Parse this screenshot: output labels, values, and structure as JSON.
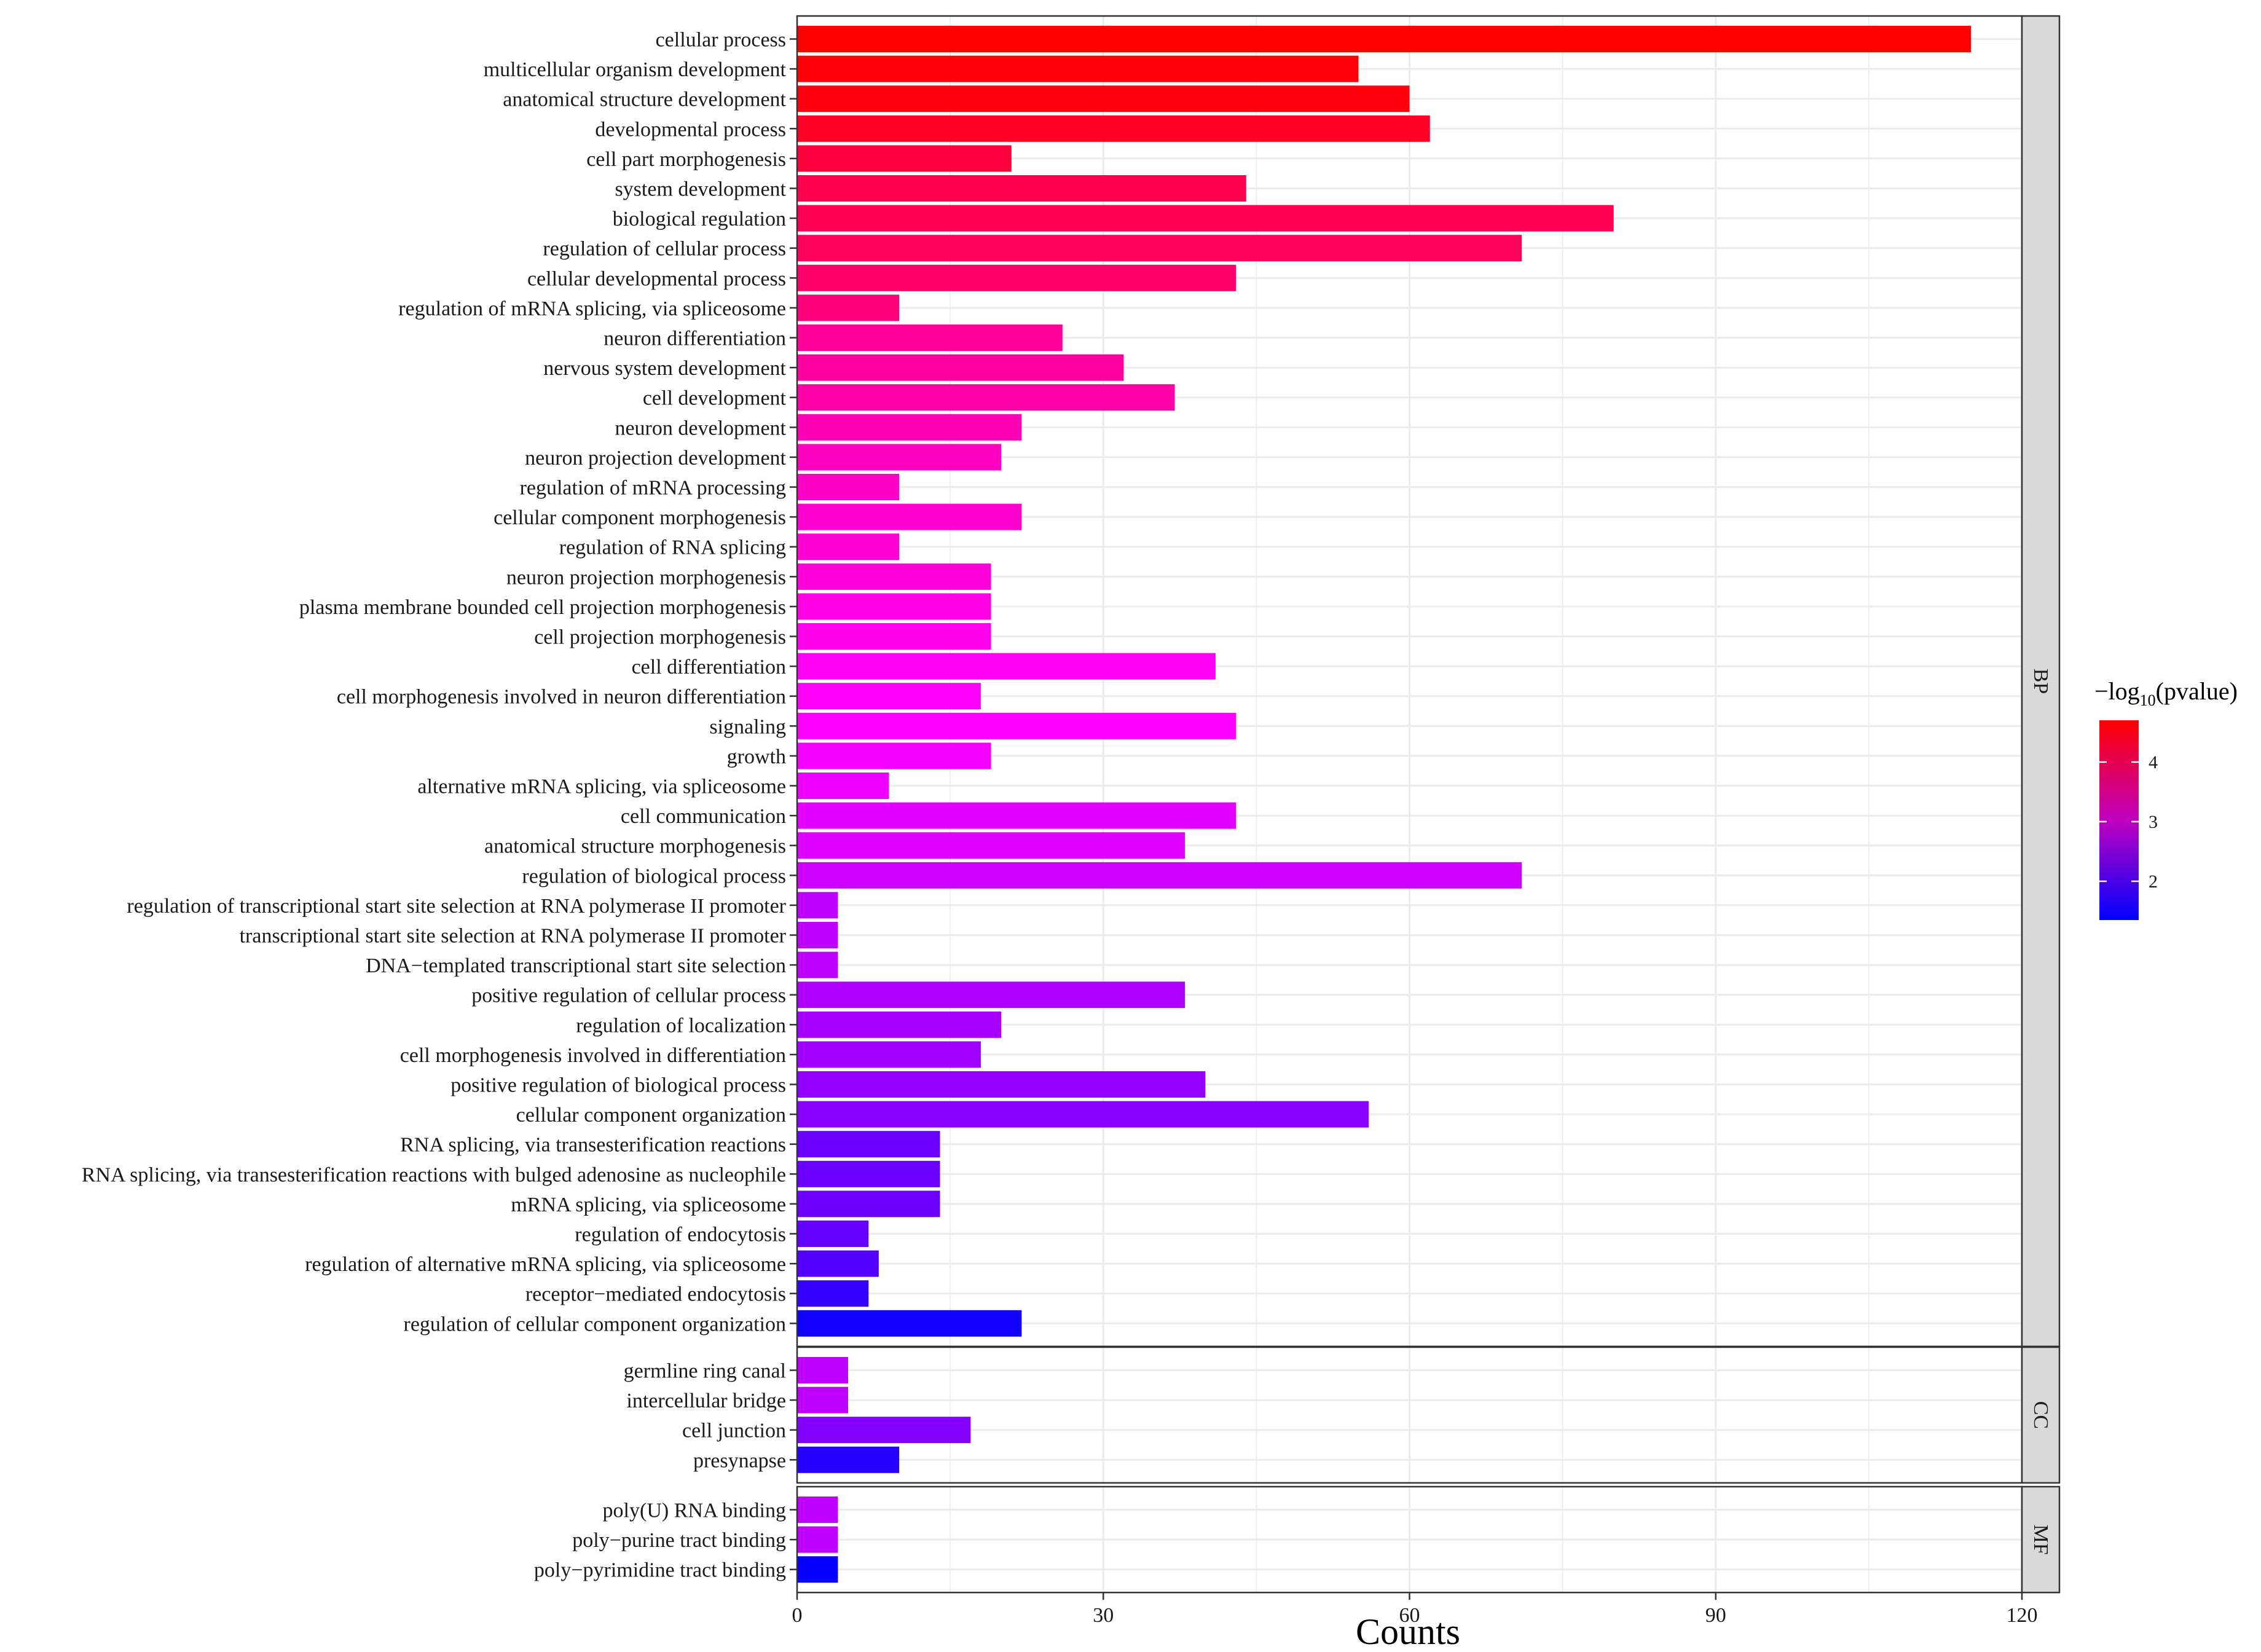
{
  "chart_data": {
    "type": "bar",
    "orientation": "horizontal",
    "xlabel": "Counts",
    "xlim": [
      0,
      120
    ],
    "xticks": [
      0,
      30,
      60,
      90,
      120
    ],
    "grid": true,
    "color_scale": {
      "title_prefix": "−log",
      "title_sub": "10",
      "title_suffix": "(pvalue)",
      "low": 1.35,
      "high": 4.7,
      "low_color": "#0000ff",
      "high_color": "#ff0000",
      "ticks": [
        2,
        3,
        4
      ],
      "legend_position": "right"
    },
    "panels": [
      {
        "name": "BP",
        "terms": [
          {
            "label": "cellular process",
            "count": 115,
            "neglog10p": 4.7
          },
          {
            "label": "multicellular organism development",
            "count": 55,
            "neglog10p": 4.65
          },
          {
            "label": "anatomical structure development",
            "count": 60,
            "neglog10p": 4.6
          },
          {
            "label": "developmental process",
            "count": 62,
            "neglog10p": 4.45
          },
          {
            "label": "cell part morphogenesis",
            "count": 21,
            "neglog10p": 4.3
          },
          {
            "label": "system development",
            "count": 44,
            "neglog10p": 4.2
          },
          {
            "label": "biological regulation",
            "count": 80,
            "neglog10p": 4.15
          },
          {
            "label": "regulation of cellular process",
            "count": 71,
            "neglog10p": 4.1
          },
          {
            "label": "cellular developmental process",
            "count": 43,
            "neglog10p": 4.0
          },
          {
            "label": "regulation of mRNA splicing, via spliceosome",
            "count": 10,
            "neglog10p": 3.9
          },
          {
            "label": "neuron differentiation",
            "count": 26,
            "neglog10p": 3.7
          },
          {
            "label": "nervous system development",
            "count": 32,
            "neglog10p": 3.65
          },
          {
            "label": "cell development",
            "count": 37,
            "neglog10p": 3.6
          },
          {
            "label": "neuron development",
            "count": 22,
            "neglog10p": 3.5
          },
          {
            "label": "neuron projection development",
            "count": 20,
            "neglog10p": 3.45
          },
          {
            "label": "regulation of mRNA processing",
            "count": 10,
            "neglog10p": 3.4
          },
          {
            "label": "cellular component morphogenesis",
            "count": 22,
            "neglog10p": 3.35
          },
          {
            "label": "regulation of RNA splicing",
            "count": 10,
            "neglog10p": 3.3
          },
          {
            "label": "neuron projection morphogenesis",
            "count": 19,
            "neglog10p": 3.25
          },
          {
            "label": "plasma membrane bounded cell projection morphogenesis",
            "count": 19,
            "neglog10p": 3.2
          },
          {
            "label": "cell projection morphogenesis",
            "count": 19,
            "neglog10p": 3.15
          },
          {
            "label": "cell differentiation",
            "count": 41,
            "neglog10p": 3.1
          },
          {
            "label": "cell morphogenesis involved in neuron differentiation",
            "count": 18,
            "neglog10p": 3.05
          },
          {
            "label": "signaling",
            "count": 43,
            "neglog10p": 3.0
          },
          {
            "label": "growth",
            "count": 19,
            "neglog10p": 2.95
          },
          {
            "label": "alternative mRNA splicing, via spliceosome",
            "count": 9,
            "neglog10p": 2.9
          },
          {
            "label": "cell communication",
            "count": 43,
            "neglog10p": 2.85
          },
          {
            "label": "anatomical structure morphogenesis",
            "count": 38,
            "neglog10p": 2.8
          },
          {
            "label": "regulation of biological process",
            "count": 71,
            "neglog10p": 2.7
          },
          {
            "label": "regulation of transcriptional start site selection at RNA polymerase II promoter",
            "count": 4,
            "neglog10p": 2.6
          },
          {
            "label": "transcriptional start site selection at RNA polymerase II promoter",
            "count": 4,
            "neglog10p": 2.6
          },
          {
            "label": "DNA−templated transcriptional start site selection",
            "count": 4,
            "neglog10p": 2.6
          },
          {
            "label": "positive regulation of cellular process",
            "count": 38,
            "neglog10p": 2.5
          },
          {
            "label": "regulation of localization",
            "count": 20,
            "neglog10p": 2.45
          },
          {
            "label": "cell morphogenesis involved in differentiation",
            "count": 18,
            "neglog10p": 2.4
          },
          {
            "label": "positive regulation of biological process",
            "count": 40,
            "neglog10p": 2.3
          },
          {
            "label": "cellular component organization",
            "count": 56,
            "neglog10p": 2.25
          },
          {
            "label": "RNA splicing, via transesterification reactions",
            "count": 14,
            "neglog10p": 2.05
          },
          {
            "label": "RNA splicing, via transesterification reactions with bulged adenosine as nucleophile",
            "count": 14,
            "neglog10p": 2.05
          },
          {
            "label": "mRNA splicing, via spliceosome",
            "count": 14,
            "neglog10p": 2.05
          },
          {
            "label": "regulation of endocytosis",
            "count": 7,
            "neglog10p": 2.0
          },
          {
            "label": "regulation of alternative mRNA splicing, via spliceosome",
            "count": 8,
            "neglog10p": 1.9
          },
          {
            "label": "receptor−mediated endocytosis",
            "count": 7,
            "neglog10p": 1.7
          },
          {
            "label": "regulation of cellular component organization",
            "count": 22,
            "neglog10p": 1.45
          }
        ]
      },
      {
        "name": "CC",
        "terms": [
          {
            "label": "germline ring canal",
            "count": 5,
            "neglog10p": 2.6
          },
          {
            "label": "intercellular bridge",
            "count": 5,
            "neglog10p": 2.6
          },
          {
            "label": "cell junction",
            "count": 17,
            "neglog10p": 2.2
          },
          {
            "label": "presynapse",
            "count": 10,
            "neglog10p": 1.6
          }
        ]
      },
      {
        "name": "MF",
        "terms": [
          {
            "label": "poly(U) RNA binding",
            "count": 4,
            "neglog10p": 2.6
          },
          {
            "label": "poly−purine tract binding",
            "count": 4,
            "neglog10p": 2.6
          },
          {
            "label": "poly−pyrimidine tract binding",
            "count": 4,
            "neglog10p": 1.4
          }
        ]
      }
    ]
  }
}
